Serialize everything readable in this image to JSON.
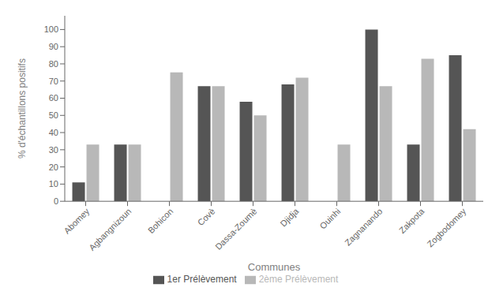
{
  "chart_data": {
    "type": "bar",
    "xlabel": "Communes",
    "ylabel": "% d'échantillons positifs",
    "categories": [
      "Abomey",
      "Agbangnizoun",
      "Bohicon",
      "Covè",
      "Dassa-Zoumè",
      "Djidja",
      "Ouinhi",
      "Zagnanando",
      "Zakpota",
      "Zogbodomey"
    ],
    "series": [
      {
        "name": "1er Prélèvement",
        "color": "#555555",
        "values": [
          11,
          33,
          0,
          67,
          58,
          68,
          0,
          100,
          33,
          85
        ]
      },
      {
        "name": "2ème Prélèvement",
        "color": "#b8b8b8",
        "values": [
          33,
          33,
          75,
          67,
          50,
          72,
          33,
          67,
          83,
          42
        ]
      }
    ],
    "ylim": [
      0,
      108
    ],
    "yticks": [
      0,
      10,
      20,
      30,
      40,
      50,
      60,
      70,
      80,
      90,
      100
    ],
    "grid": false,
    "legend": "bottom"
  }
}
